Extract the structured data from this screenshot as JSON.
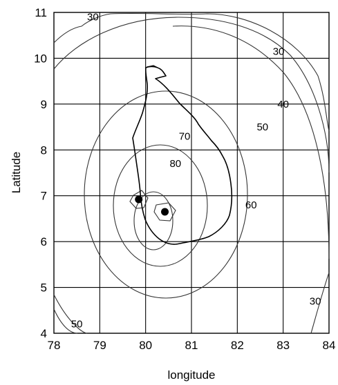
{
  "map": {
    "x_axis": {
      "label": "longitude",
      "range": [
        78,
        84
      ],
      "ticks": [
        "78",
        "79",
        "80",
        "81",
        "82",
        "83",
        "84"
      ]
    },
    "y_axis": {
      "label": "Latitude",
      "range": [
        4,
        11
      ],
      "ticks": [
        "4",
        "5",
        "6",
        "7",
        "8",
        "9",
        "10",
        "11"
      ]
    },
    "grid": true,
    "contour_levels": [
      30,
      40,
      50,
      60,
      70,
      80
    ],
    "contour_labels": [
      {
        "text": "30",
        "lon": 78.85,
        "lat": 10.9
      },
      {
        "text": "30",
        "lon": 82.9,
        "lat": 10.15
      },
      {
        "text": "40",
        "lon": 83.0,
        "lat": 9.0
      },
      {
        "text": "50",
        "lon": 82.55,
        "lat": 8.5
      },
      {
        "text": "70",
        "lon": 80.85,
        "lat": 8.3
      },
      {
        "text": "80",
        "lon": 80.65,
        "lat": 7.7
      },
      {
        "text": "60",
        "lon": 82.3,
        "lat": 6.8
      },
      {
        "text": "30",
        "lon": 83.7,
        "lat": 4.7
      },
      {
        "text": "50",
        "lon": 78.5,
        "lat": 4.2
      }
    ],
    "stations": [
      {
        "lon": 79.85,
        "lat": 6.92
      },
      {
        "lon": 80.42,
        "lat": 6.65
      }
    ],
    "colors": {
      "line": "#000000",
      "contour": "#333333",
      "background": "#ffffff"
    }
  }
}
